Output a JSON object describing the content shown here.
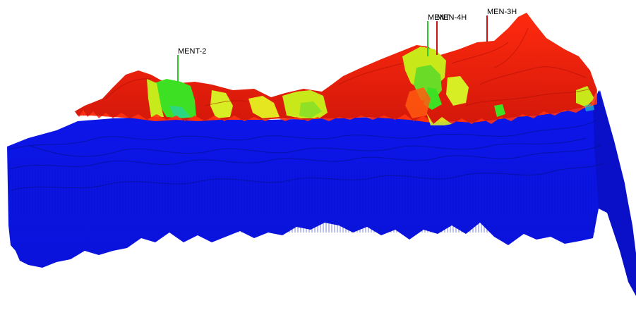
{
  "viewer": {
    "colors": {
      "background": "#ffffff",
      "volume": "#0a14e6",
      "volume_dark": "#081098",
      "surface_high": "#e8200c",
      "surface_mid": "#ff3a10",
      "surface_yellow": "#c8e81a",
      "surface_green": "#3ae020",
      "well_green": "#2ec82e",
      "well_red": "#c81414"
    }
  },
  "wells": [
    {
      "name": "MENT-2",
      "color": "well_green"
    },
    {
      "name": "MENT",
      "color": "well_green"
    },
    {
      "name": "MEN-4H",
      "color": "well_red"
    },
    {
      "name": "MEN-3H",
      "color": "well_red"
    }
  ]
}
